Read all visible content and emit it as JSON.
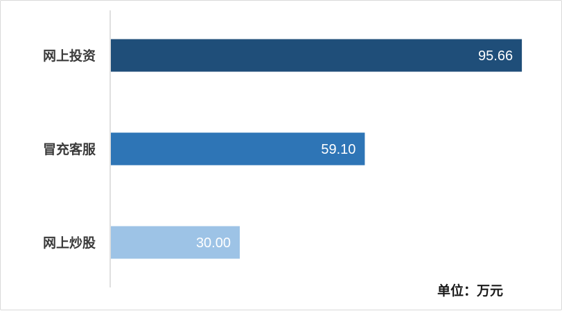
{
  "chart_data": {
    "type": "bar",
    "orientation": "horizontal",
    "categories": [
      "网上投资",
      "冒充客服",
      "网上炒股"
    ],
    "values": [
      95.66,
      59.1,
      30.0
    ],
    "value_labels": [
      "95.66",
      "59.10",
      "30.00"
    ],
    "colors": [
      "#1f4e79",
      "#2e75b6",
      "#9dc3e6"
    ],
    "xlim": [
      0,
      100
    ],
    "unit_note": "单位：万元",
    "grid": false,
    "legend": "none"
  }
}
